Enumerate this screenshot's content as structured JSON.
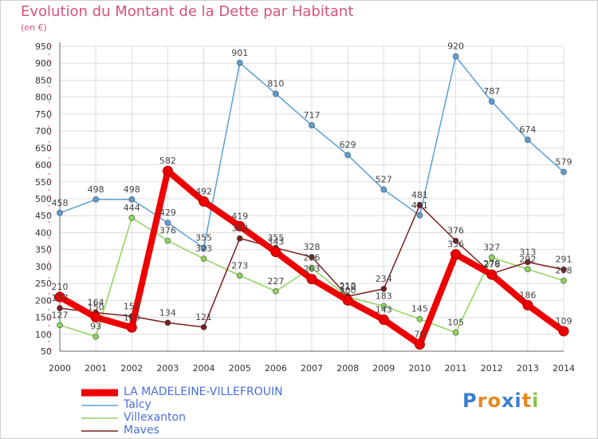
{
  "title": "Evolution du Montant de la Dette par Habitant",
  "subtitle": "(en €)",
  "logo": {
    "text": "Proxiti",
    "colors": [
      "#3a7fd0",
      "#e48a1e",
      "#e48a1e",
      "#3a7fd0",
      "#3a7fd0",
      "#e48a1e",
      "#8bc34a"
    ]
  },
  "chart_data": {
    "type": "line",
    "title": "Evolution du Montant de la Dette par Habitant",
    "subtitle": "(en €)",
    "xlabel": "",
    "ylabel": "",
    "x": [
      2000,
      2001,
      2002,
      2003,
      2004,
      2005,
      2006,
      2007,
      2008,
      2009,
      2010,
      2011,
      2012,
      2013,
      2014
    ],
    "y_ticks": [
      50,
      100,
      150,
      200,
      250,
      300,
      350,
      400,
      450,
      500,
      550,
      600,
      650,
      700,
      750,
      800,
      850,
      900,
      950
    ],
    "ylim": [
      50,
      950
    ],
    "grid": true,
    "legend_position": "bottom-left",
    "series": [
      {
        "name": "Talcy",
        "color": "#5a9fd4",
        "values": [
          458,
          498,
          498,
          429,
          355,
          901,
          810,
          717,
          629,
          527,
          451,
          920,
          787,
          674,
          579
        ],
        "labels": [
          "458",
          "498",
          "498",
          "429",
          "355",
          "901",
          "810",
          "717",
          "629",
          "527",
          "451",
          "920",
          "787",
          "674",
          "579"
        ]
      },
      {
        "name": "Villexanton",
        "color": "#8fd45a",
        "values": [
          127,
          93,
          444,
          376,
          323,
          273,
          227,
          296,
          210,
          183,
          145,
          105,
          327,
          292,
          258
        ],
        "labels": [
          "127",
          "93",
          "444",
          "376",
          "323",
          "273",
          "227",
          "296",
          "210",
          "183",
          "145",
          "105",
          "327",
          "292",
          "258"
        ]
      },
      {
        "name": "Maves",
        "color": "#7a1e1e",
        "values": [
          177,
          164,
          153,
          134,
          121,
          383,
          355,
          328,
          212,
          234,
          481,
          376,
          279,
          313,
          291
        ],
        "labels": [
          "177",
          "164",
          "153",
          "134",
          "121",
          "383",
          "355",
          "328",
          "212",
          "234",
          "481",
          "376",
          "279",
          "313",
          "291"
        ]
      },
      {
        "name": "LA MADELEINE-VILLEFROUIN",
        "color": "#ee0000",
        "values": [
          210,
          150,
          120,
          582,
          492,
          419,
          343,
          263,
          200,
          143,
          70,
          336,
          276,
          186,
          109
        ],
        "labels": [
          "210",
          "150",
          "120",
          "582",
          "492",
          "419",
          "343",
          "263",
          "200",
          "143",
          "70",
          "336",
          "276",
          "186",
          "109"
        ]
      }
    ]
  },
  "legend": [
    {
      "label": "LA MADELEINE-VILLEFROUIN",
      "color": "#ee0000",
      "thick": true
    },
    {
      "label": "Talcy",
      "color": "#5a9fd4",
      "thick": false
    },
    {
      "label": "Villexanton",
      "color": "#8fd45a",
      "thick": false
    },
    {
      "label": "Maves",
      "color": "#7a1e1e",
      "thick": false
    }
  ]
}
